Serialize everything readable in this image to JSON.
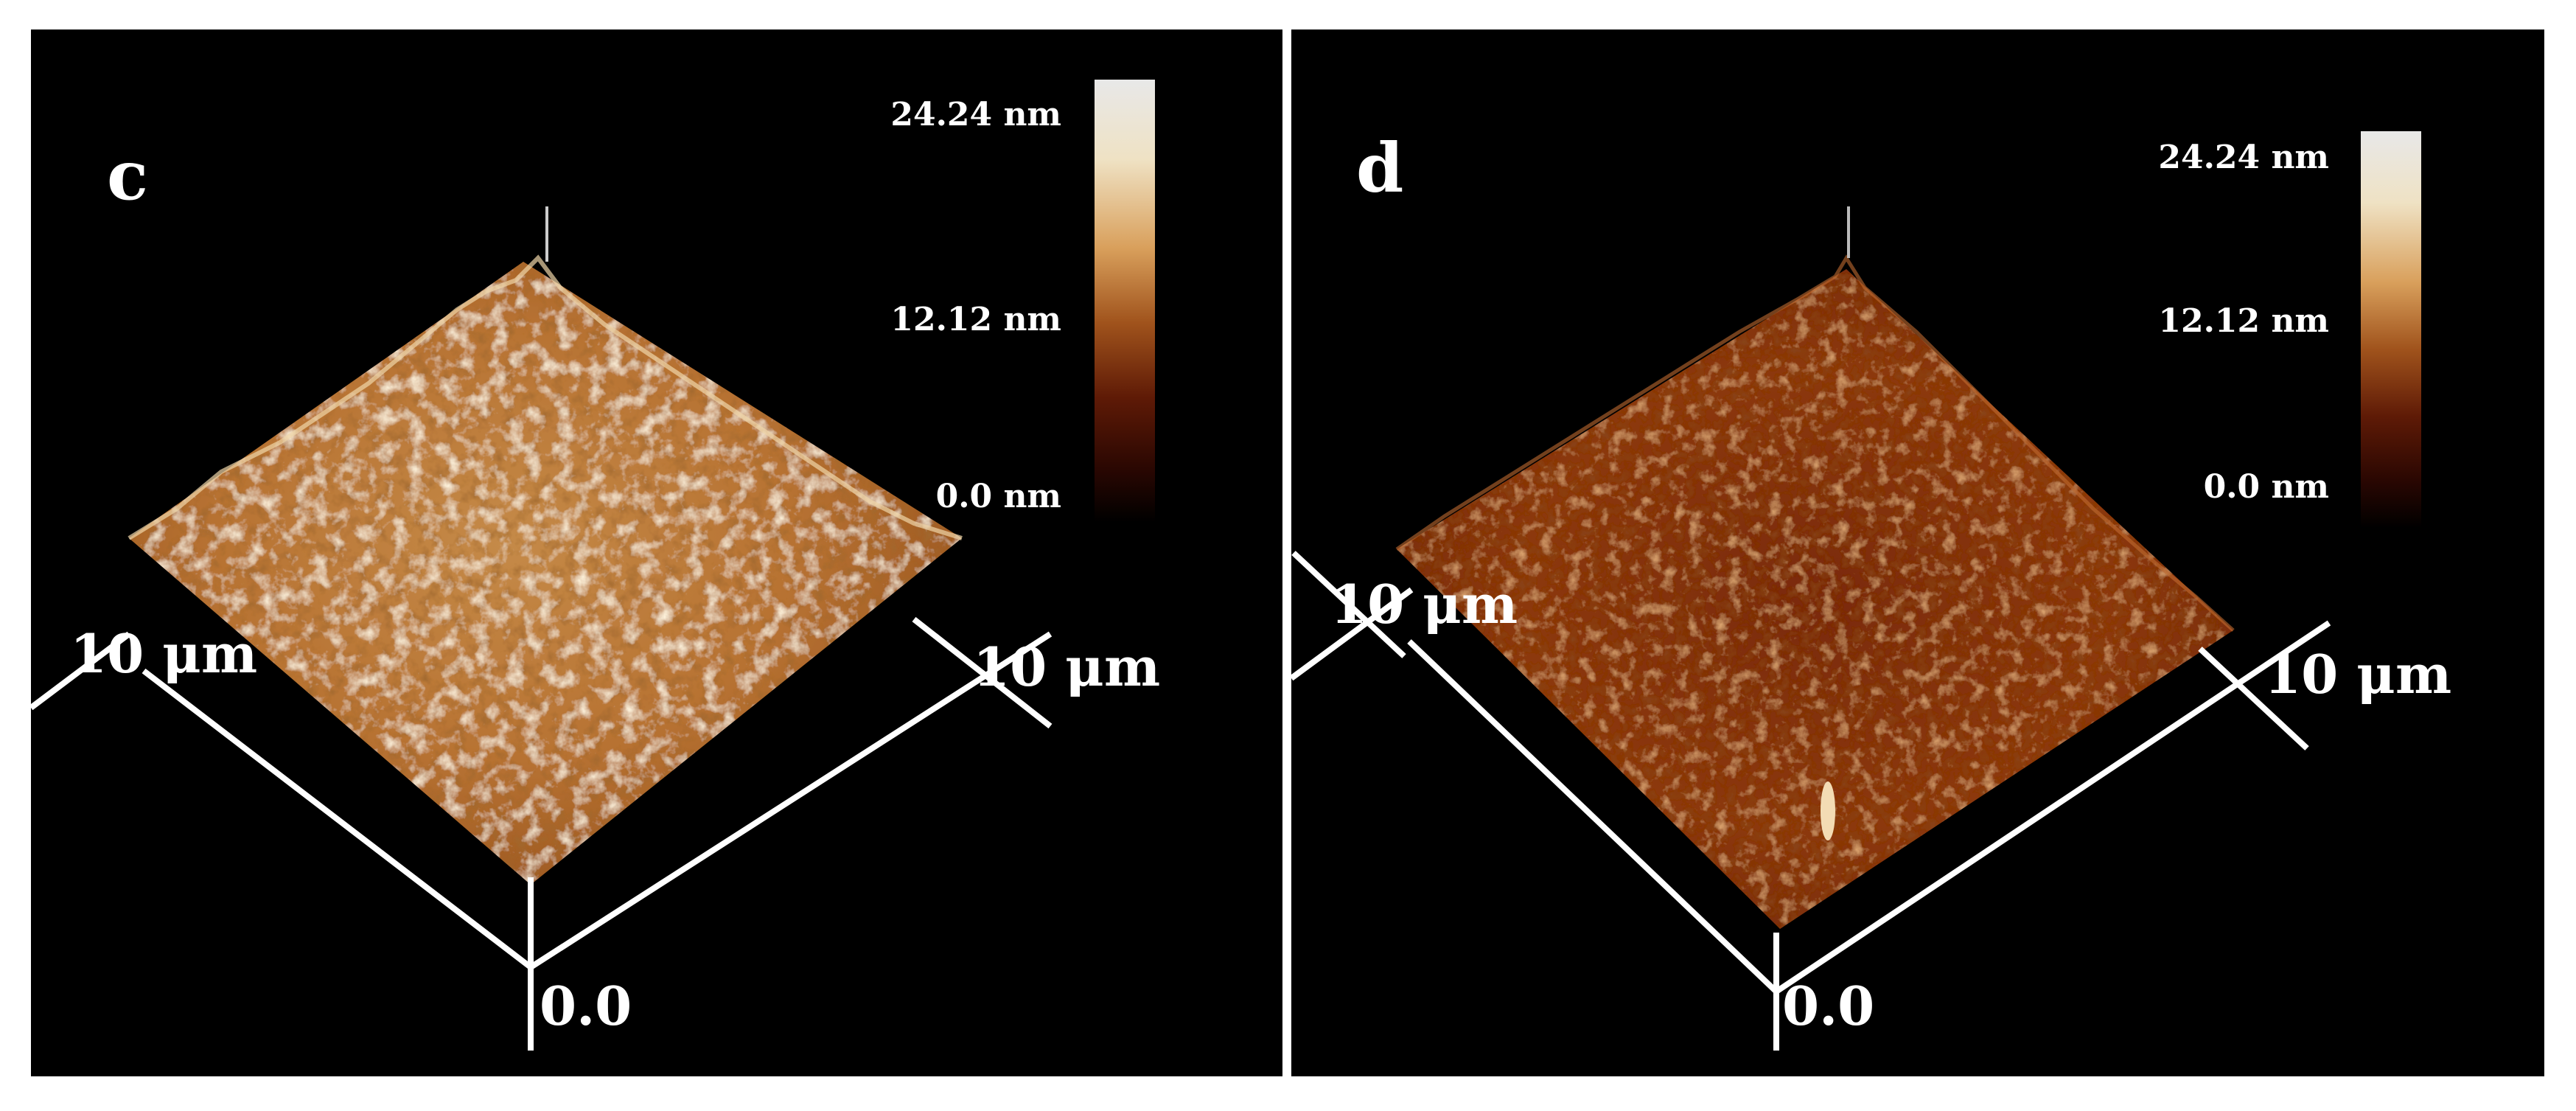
{
  "figure": {
    "panels": [
      {
        "id": "c",
        "letter": "c",
        "colorbar": {
          "max": "24.24 nm",
          "mid": "12.12 nm",
          "min": "0.0 nm"
        },
        "axis_left": "10 μm",
        "axis_right": "10 μm",
        "origin": "0.0",
        "surface_tone": "bright"
      },
      {
        "id": "d",
        "letter": "d",
        "colorbar": {
          "max": "24.24 nm",
          "mid": "12.12 nm",
          "min": "0.0 nm"
        },
        "axis_left": "10 μm",
        "axis_right": "10 μm",
        "origin": "0.0",
        "surface_tone": "dark"
      }
    ],
    "colors": {
      "background": "#000000",
      "axis": "#ffffff",
      "surface_light": "#f3dcb4",
      "surface_mid": "#c07a3a",
      "surface_dark": "#5a1a06"
    }
  }
}
